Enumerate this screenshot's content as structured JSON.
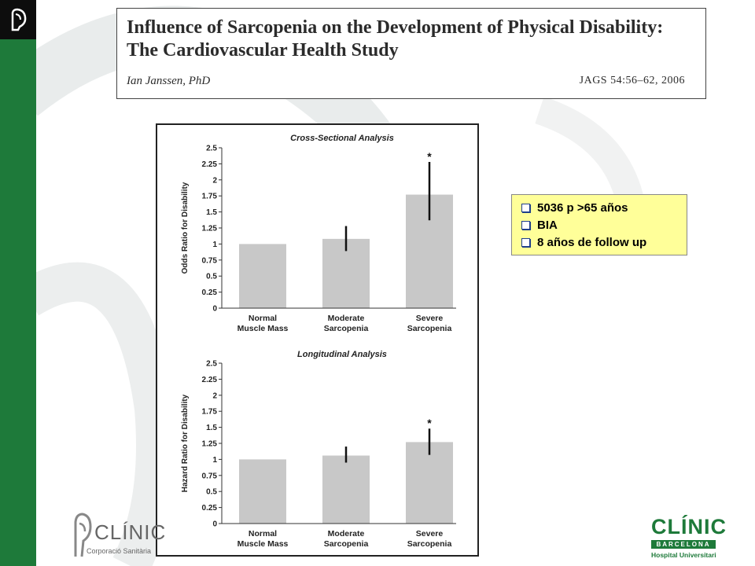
{
  "paper": {
    "title_line1": "Influence of Sarcopenia on the Development of Physical Disability:",
    "title_line2": "The Cardiovascular Health Study",
    "author": "Ian Janssen, PhD",
    "journal": "JAGS   54:56–62, 2006"
  },
  "info_items": [
    "5036 p >65 años",
    "BIA",
    "8 años de follow up"
  ],
  "logos": {
    "left_name": "CLÍNIC",
    "left_sub": "Corporació Sanitària",
    "right_name": "CLÍNIC",
    "right_band": "BARCELONA",
    "right_sub": "Hospital Universitari"
  },
  "colors": {
    "sidebar": "#1e7a3a",
    "bar": "#c8c8c8",
    "info_box": "#ffff99"
  },
  "chart_data": [
    {
      "type": "bar",
      "title": "Cross-Sectional Analysis",
      "ylabel": "Odds Ratio for Disability",
      "ylim": [
        0,
        2.5
      ],
      "yticks": [
        "0",
        "0.25",
        "0.5",
        "0.75",
        "1",
        "1.25",
        "1.5",
        "1.75",
        "2",
        "2.25",
        "2.5"
      ],
      "categories": [
        [
          "Normal",
          "Muscle Mass"
        ],
        [
          "Moderate",
          "Sarcopenia"
        ],
        [
          "Severe",
          "Sarcopenia"
        ]
      ],
      "values": [
        1.0,
        1.08,
        1.77
      ],
      "error_low": [
        null,
        0.89,
        1.37
      ],
      "error_high": [
        null,
        1.28,
        2.28
      ],
      "significance": [
        "",
        "",
        "*"
      ]
    },
    {
      "type": "bar",
      "title": "Longitudinal Analysis",
      "ylabel": "Hazard Ratio for Disability",
      "ylim": [
        0,
        2.5
      ],
      "yticks": [
        "0",
        "0.25",
        "0.5",
        "0.75",
        "1",
        "1.25",
        "1.5",
        "1.75",
        "2",
        "2.25",
        "2.5"
      ],
      "categories": [
        [
          "Normal",
          "Muscle Mass"
        ],
        [
          "Moderate",
          "Sarcopenia"
        ],
        [
          "Severe",
          "Sarcopenia"
        ]
      ],
      "values": [
        1.0,
        1.06,
        1.27
      ],
      "error_low": [
        null,
        0.95,
        1.07
      ],
      "error_high": [
        null,
        1.2,
        1.48
      ],
      "significance": [
        "",
        "",
        "*"
      ]
    }
  ]
}
